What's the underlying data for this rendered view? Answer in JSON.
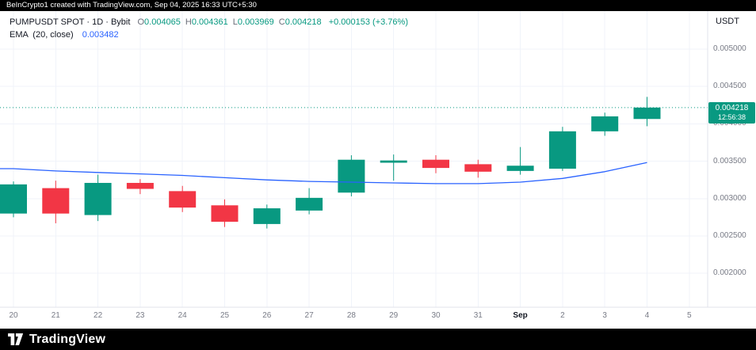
{
  "top_bar": {
    "attribution": "BeInCrypto1 created with TradingView.com, Sep 04, 2025 16:33 UTC+5:30"
  },
  "legend": {
    "title": "PUMPUSDT SPOT · 1D · Bybit",
    "ohlc": [
      {
        "label": "O",
        "value": "0.004065"
      },
      {
        "label": "H",
        "value": "0.004361"
      },
      {
        "label": "L",
        "value": "0.003969"
      },
      {
        "label": "C",
        "value": "0.004218"
      }
    ],
    "change": "+0.000153 (+3.76%)",
    "indicator": {
      "name": "EMA",
      "params": "(20, close)",
      "value": "0.003482"
    }
  },
  "price_axis": {
    "currency": "USDT",
    "labels": [
      "0.005000",
      "0.004500",
      "0.004000",
      "0.003500",
      "0.003000",
      "0.002500",
      "0.002000"
    ],
    "badge": {
      "price": "0.004218",
      "countdown": "12:56:38"
    }
  },
  "x_axis": {
    "labels": [
      "20",
      "21",
      "22",
      "23",
      "24",
      "25",
      "26",
      "27",
      "28",
      "29",
      "30",
      "31",
      "Sep",
      "2",
      "3",
      "4",
      "5"
    ],
    "emphasized": "Sep"
  },
  "footer": {
    "brand": "TradingView"
  },
  "colors": {
    "up": "#089981",
    "down": "#f23645",
    "ema": "#2962ff",
    "badge_bg": "#089981",
    "bar_bg": "#000000",
    "grid": "#f0f3fa",
    "separator": "#e0e3eb",
    "axis_text": "#787b86",
    "text": "#131722"
  },
  "chart_data": {
    "type": "candlestick",
    "symbol": "PUMPUSDT SPOT",
    "interval": "1D",
    "exchange": "Bybit",
    "title": "PUMPUSDT SPOT · 1D · Bybit",
    "legend_position": "top-left",
    "grid": true,
    "y_axis": {
      "ticks": [
        0.005,
        0.0045,
        0.004,
        0.0035,
        0.003,
        0.0025,
        0.002
      ],
      "visible_range": [
        0.00155,
        0.00551
      ]
    },
    "candles": [
      {
        "date": "Aug 20",
        "open": 0.0028,
        "high": 0.00323,
        "low": 0.00275,
        "close": 0.00319
      },
      {
        "date": "Aug 21",
        "open": 0.00314,
        "high": 0.00324,
        "low": 0.00267,
        "close": 0.0028
      },
      {
        "date": "Aug 22",
        "open": 0.00278,
        "high": 0.00332,
        "low": 0.0027,
        "close": 0.00321
      },
      {
        "date": "Aug 23",
        "open": 0.00321,
        "high": 0.00326,
        "low": 0.00306,
        "close": 0.00313
      },
      {
        "date": "Aug 24",
        "open": 0.0031,
        "high": 0.00317,
        "low": 0.00282,
        "close": 0.00288
      },
      {
        "date": "Aug 25",
        "open": 0.00291,
        "high": 0.00299,
        "low": 0.00262,
        "close": 0.00269
      },
      {
        "date": "Aug 26",
        "open": 0.00266,
        "high": 0.00292,
        "low": 0.0026,
        "close": 0.00287
      },
      {
        "date": "Aug 27",
        "open": 0.00284,
        "high": 0.00314,
        "low": 0.00279,
        "close": 0.00301
      },
      {
        "date": "Aug 28",
        "open": 0.00308,
        "high": 0.00358,
        "low": 0.00303,
        "close": 0.00352
      },
      {
        "date": "Aug 29",
        "open": 0.00348,
        "high": 0.00359,
        "low": 0.00324,
        "close": 0.00351
      },
      {
        "date": "Aug 30",
        "open": 0.00352,
        "high": 0.00358,
        "low": 0.00334,
        "close": 0.00341
      },
      {
        "date": "Aug 31",
        "open": 0.00346,
        "high": 0.00352,
        "low": 0.00328,
        "close": 0.00336
      },
      {
        "date": "Sep 1",
        "open": 0.00337,
        "high": 0.00369,
        "low": 0.00332,
        "close": 0.00344
      },
      {
        "date": "Sep 2",
        "open": 0.0034,
        "high": 0.00396,
        "low": 0.00337,
        "close": 0.0039
      },
      {
        "date": "Sep 3",
        "open": 0.0039,
        "high": 0.00415,
        "low": 0.00384,
        "close": 0.0041
      },
      {
        "date": "Sep 4",
        "open": 0.004065,
        "high": 0.004361,
        "low": 0.003969,
        "close": 0.004218
      }
    ],
    "ema20": [
      0.0034,
      0.00337,
      0.00335,
      0.00333,
      0.00331,
      0.00328,
      0.00325,
      0.00323,
      0.00322,
      0.00321,
      0.0032,
      0.0032,
      0.00322,
      0.00327,
      0.00336,
      0.003482
    ],
    "current_price": 0.004218,
    "ema_current": 0.003482
  }
}
